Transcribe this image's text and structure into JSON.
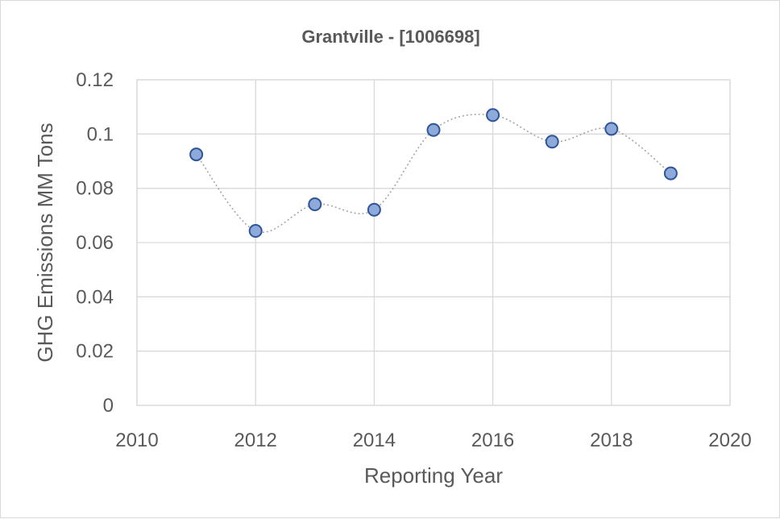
{
  "chart_data": {
    "type": "scatter",
    "title": "Grantville - [1006698]",
    "xlabel": "Reporting Year",
    "ylabel": "GHG Emissions MM Tons",
    "xlim": [
      2010,
      2020
    ],
    "ylim": [
      0,
      0.12
    ],
    "x_ticks": [
      "2010",
      "2012",
      "2014",
      "2016",
      "2018",
      "2020"
    ],
    "y_ticks": [
      "0",
      "0.02",
      "0.04",
      "0.06",
      "0.08",
      "0.1",
      "0.12"
    ],
    "grid": true,
    "smoothed_line": true,
    "series": [
      {
        "x": [
          2011,
          2012,
          2013,
          2014,
          2015,
          2016,
          2017,
          2018,
          2019
        ],
        "y": [
          0.0925,
          0.0643,
          0.0741,
          0.0721,
          0.1015,
          0.107,
          0.0972,
          0.1019,
          0.0855
        ]
      }
    ],
    "colors": {
      "marker_fill": "#8eaadb",
      "marker_stroke": "#2f5597",
      "line": "#a6a6a6",
      "grid": "#d9d9d9",
      "text": "#595959"
    }
  }
}
